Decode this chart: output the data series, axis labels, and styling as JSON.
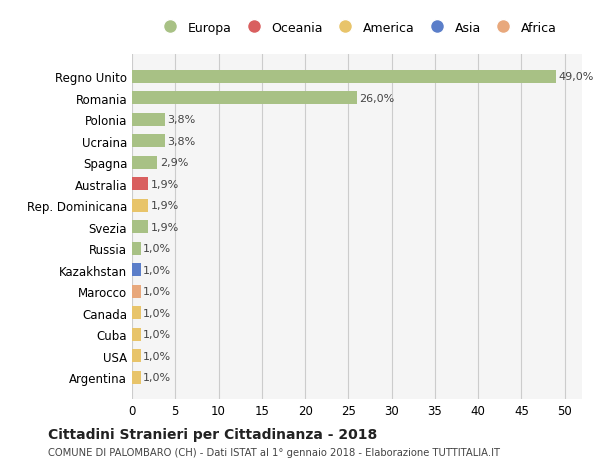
{
  "countries": [
    "Regno Unito",
    "Romania",
    "Polonia",
    "Ucraina",
    "Spagna",
    "Australia",
    "Rep. Dominicana",
    "Svezia",
    "Russia",
    "Kazakhstan",
    "Marocco",
    "Canada",
    "Cuba",
    "USA",
    "Argentina"
  ],
  "values": [
    49.0,
    26.0,
    3.8,
    3.8,
    2.9,
    1.9,
    1.9,
    1.9,
    1.0,
    1.0,
    1.0,
    1.0,
    1.0,
    1.0,
    1.0
  ],
  "labels": [
    "49,0%",
    "26,0%",
    "3,8%",
    "3,8%",
    "2,9%",
    "1,9%",
    "1,9%",
    "1,9%",
    "1,0%",
    "1,0%",
    "1,0%",
    "1,0%",
    "1,0%",
    "1,0%",
    "1,0%"
  ],
  "bar_colors": [
    "#a8c185",
    "#a8c185",
    "#a8c185",
    "#a8c185",
    "#a8c185",
    "#d95f5f",
    "#e8c46a",
    "#a8c185",
    "#a8c185",
    "#5b7ec9",
    "#e8a87c",
    "#e8c46a",
    "#e8c46a",
    "#e8c46a",
    "#e8c46a"
  ],
  "legend_labels": [
    "Europa",
    "Oceania",
    "America",
    "Asia",
    "Africa"
  ],
  "legend_colors": [
    "#a8c185",
    "#d95f5f",
    "#e8c46a",
    "#5b7ec9",
    "#e8a87c"
  ],
  "xlim": [
    0,
    52
  ],
  "xticks": [
    0,
    5,
    10,
    15,
    20,
    25,
    30,
    35,
    40,
    45,
    50
  ],
  "title_main": "Cittadini Stranieri per Cittadinanza - 2018",
  "title_sub": "COMUNE DI PALOMBARO (CH) - Dati ISTAT al 1° gennaio 2018 - Elaborazione TUTTITALIA.IT",
  "bg_color": "#ffffff",
  "bar_bg_color": "#f5f5f5",
  "grid_color": "#cccccc"
}
